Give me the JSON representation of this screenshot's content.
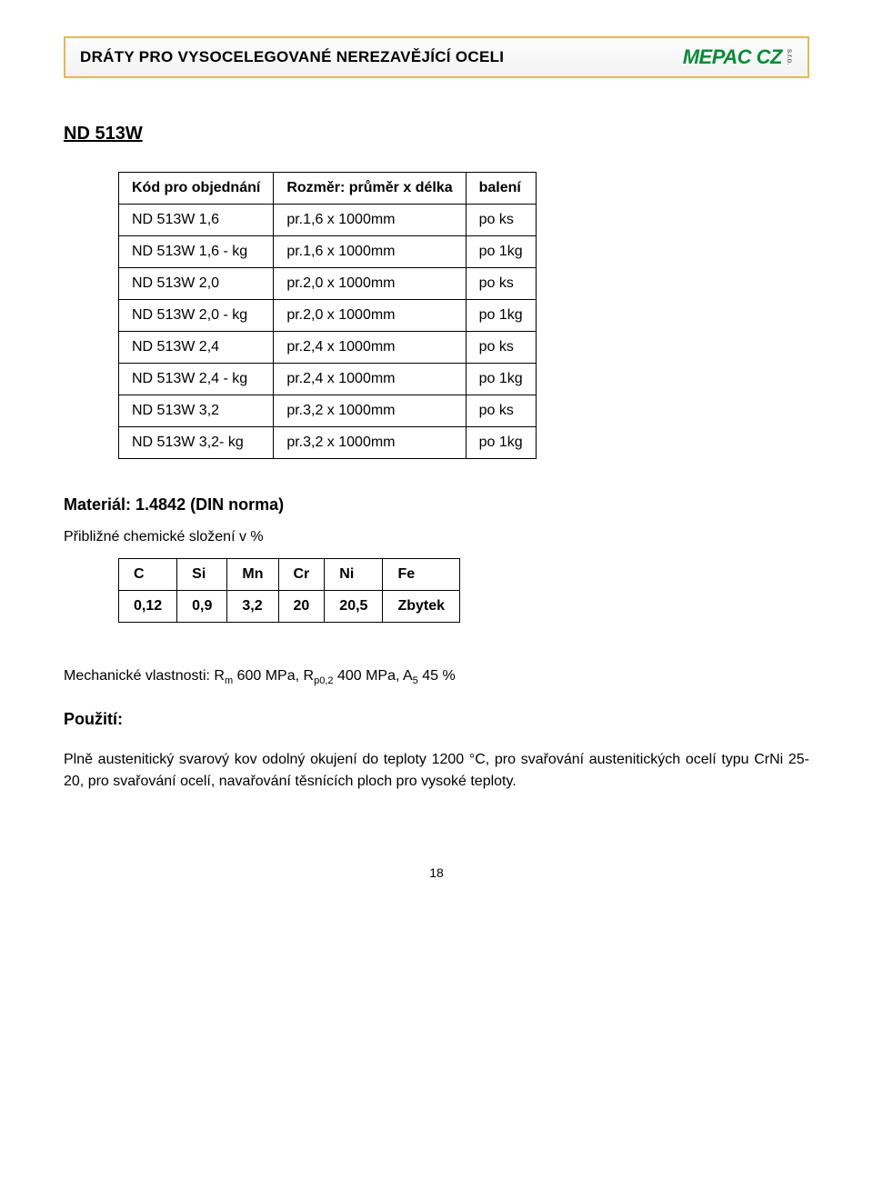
{
  "header": {
    "title": "DRÁTY PRO VYSOCELEGOVANÉ NEREZAVĚJÍCÍ OCELI",
    "logo_main": "MEPAC CZ",
    "logo_suffix": "s.r.o."
  },
  "product": {
    "title": "ND 513W"
  },
  "order_table": {
    "columns": [
      "Kód pro objednání",
      "Rozměr: průměr x délka",
      "balení"
    ],
    "rows": [
      [
        "ND 513W 1,6",
        "pr.1,6 x 1000mm",
        "po ks"
      ],
      [
        "ND 513W 1,6 - kg",
        "pr.1,6 x 1000mm",
        "po 1kg"
      ],
      [
        "ND 513W 2,0",
        "pr.2,0 x 1000mm",
        "po ks"
      ],
      [
        "ND 513W 2,0 - kg",
        "pr.2,0 x 1000mm",
        "po 1kg"
      ],
      [
        "ND 513W 2,4",
        "pr.2,4 x 1000mm",
        "po ks"
      ],
      [
        "ND 513W 2,4 - kg",
        "pr.2,4 x 1000mm",
        "po 1kg"
      ],
      [
        "ND 513W 3,2",
        "pr.3,2 x 1000mm",
        "po ks"
      ],
      [
        "ND 513W 3,2- kg",
        "pr.3,2 x 1000mm",
        "po 1kg"
      ]
    ]
  },
  "material": {
    "label": "Materiál:  1.4842 (DIN norma)",
    "comp_label": "Přibližné chemické složení v %"
  },
  "comp_table": {
    "columns": [
      "C",
      "Si",
      "Mn",
      "Cr",
      "Ni",
      "Fe"
    ],
    "rows": [
      [
        "0,12",
        "0,9",
        "3,2",
        "20",
        "20,5",
        "Zbytek"
      ]
    ]
  },
  "mech": {
    "prefix": "Mechanické vlastnosti: R",
    "sub1": "m",
    "v1": " 600 MPa, R",
    "sub2": "p0,2",
    "v2": " 400 MPa, A",
    "sub3": "5",
    "v3": " 45 %"
  },
  "use": {
    "title": "Použití:",
    "body": "Plně austenitický svarový kov odolný okujení do teploty 1200 °C, pro svařování austenitických ocelí typu CrNi 25-20, pro svařování ocelí, navařování těsnících ploch pro vysoké teploty."
  },
  "footer": {
    "page_number": "18"
  },
  "style": {
    "header_border_color": "#e6b84d",
    "logo_color": "#0a8a3a"
  }
}
